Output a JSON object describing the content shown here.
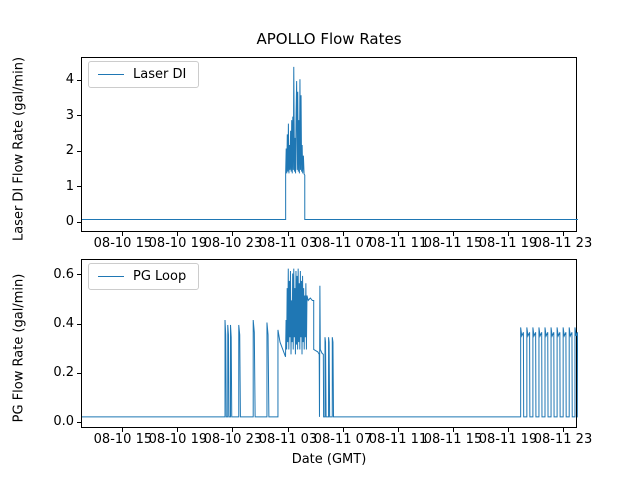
{
  "figure": {
    "title": "APOLLO Flow Rates",
    "xlabel": "Date (GMT)",
    "background": "#ffffff",
    "line_color": "#1f77b4",
    "text_color": "#000000"
  },
  "chart_data": [
    {
      "type": "line",
      "name": "laser-di",
      "ylabel": "Laser DI Flow Rate (gal/min)",
      "legend": {
        "label": "Laser DI",
        "position": "upper left"
      },
      "grid": false,
      "x_unit": "hours after 08-10 12:00 GMT",
      "xlim": [
        -0.05,
        36.02
      ],
      "ylim": [
        -0.28,
        4.65
      ],
      "yticks": [
        0,
        1,
        2,
        3,
        4
      ],
      "ytick_labels": [
        "0",
        "1",
        "2",
        "3",
        "4"
      ],
      "xticks": [
        3,
        7,
        11,
        15,
        19,
        23,
        27,
        31,
        35
      ],
      "xtick_labels": [
        "08-10 15",
        "08-10 19",
        "08-10 23",
        "08-11 03",
        "08-11 07",
        "08-11 11",
        "08-11 15",
        "08-11 19",
        "08-11 23"
      ],
      "series": [
        {
          "name": "Laser DI",
          "color": "#1f77b4",
          "points": [
            [
              -0.05,
              0.1
            ],
            [
              14.76,
              0.1
            ],
            [
              14.76,
              1.4
            ],
            [
              14.8,
              2.1
            ],
            [
              14.84,
              1.4
            ],
            [
              14.88,
              2.5
            ],
            [
              14.92,
              1.45
            ],
            [
              14.96,
              2.8
            ],
            [
              15.0,
              1.4
            ],
            [
              15.04,
              2.2
            ],
            [
              15.08,
              1.5
            ],
            [
              15.12,
              2.6
            ],
            [
              15.16,
              1.45
            ],
            [
              15.2,
              2.9
            ],
            [
              15.24,
              1.4
            ],
            [
              15.28,
              3.0
            ],
            [
              15.32,
              1.5
            ],
            [
              15.35,
              4.4
            ],
            [
              15.4,
              1.45
            ],
            [
              15.44,
              2.4
            ],
            [
              15.48,
              1.4
            ],
            [
              15.52,
              3.1
            ],
            [
              15.56,
              4.0
            ],
            [
              15.6,
              1.5
            ],
            [
              15.64,
              3.7
            ],
            [
              15.68,
              1.45
            ],
            [
              15.72,
              2.9
            ],
            [
              15.76,
              1.4
            ],
            [
              15.8,
              4.05
            ],
            [
              15.84,
              1.5
            ],
            [
              15.88,
              3.6
            ],
            [
              15.92,
              1.45
            ],
            [
              15.96,
              2.2
            ],
            [
              16.0,
              1.4
            ],
            [
              16.05,
              1.9
            ],
            [
              16.1,
              1.38
            ],
            [
              16.15,
              1.35
            ],
            [
              16.15,
              0.1
            ],
            [
              36.02,
              0.1
            ]
          ]
        }
      ]
    },
    {
      "type": "line",
      "name": "pg-loop",
      "ylabel": "PG Flow Rate (gal/min)",
      "legend": {
        "label": "PG Loop",
        "position": "upper left"
      },
      "grid": false,
      "x_unit": "hours after 08-10 12:00 GMT",
      "xlim": [
        -0.05,
        36.02
      ],
      "ylim": [
        -0.0245,
        0.665
      ],
      "yticks": [
        0,
        0.2,
        0.4,
        0.6
      ],
      "ytick_labels": [
        "0.0",
        "0.2",
        "0.4",
        "0.6"
      ],
      "xticks": [
        3,
        7,
        11,
        15,
        19,
        23,
        27,
        31,
        35
      ],
      "xtick_labels": [
        "08-10 15",
        "08-10 19",
        "08-10 23",
        "08-11 03",
        "08-11 07",
        "08-11 11",
        "08-11 15",
        "08-11 19",
        "08-11 23"
      ],
      "series": [
        {
          "name": "PG Loop",
          "color": "#1f77b4",
          "points": [
            [
              -0.05,
              0.025
            ],
            [
              10.35,
              0.025
            ],
            [
              10.35,
              0.42
            ],
            [
              10.4,
              0.36
            ],
            [
              10.44,
              0.025
            ],
            [
              10.55,
              0.025
            ],
            [
              10.55,
              0.4
            ],
            [
              10.6,
              0.36
            ],
            [
              10.64,
              0.025
            ],
            [
              10.75,
              0.025
            ],
            [
              10.75,
              0.4
            ],
            [
              10.8,
              0.35
            ],
            [
              10.84,
              0.025
            ],
            [
              11.35,
              0.025
            ],
            [
              11.35,
              0.4
            ],
            [
              11.42,
              0.36
            ],
            [
              11.47,
              0.025
            ],
            [
              12.4,
              0.025
            ],
            [
              12.4,
              0.42
            ],
            [
              12.48,
              0.37
            ],
            [
              12.54,
              0.025
            ],
            [
              13.4,
              0.025
            ],
            [
              13.4,
              0.41
            ],
            [
              13.48,
              0.36
            ],
            [
              13.54,
              0.025
            ],
            [
              14.2,
              0.025
            ],
            [
              14.2,
              0.38
            ],
            [
              14.35,
              0.33
            ],
            [
              14.55,
              0.3
            ],
            [
              14.75,
              0.27
            ],
            [
              14.79,
              0.42
            ],
            [
              14.83,
              0.3
            ],
            [
              14.87,
              0.55
            ],
            [
              14.91,
              0.33
            ],
            [
              14.95,
              0.63
            ],
            [
              14.99,
              0.3
            ],
            [
              15.03,
              0.58
            ],
            [
              15.07,
              0.35
            ],
            [
              15.11,
              0.62
            ],
            [
              15.15,
              0.28
            ],
            [
              15.19,
              0.5
            ],
            [
              15.23,
              0.33
            ],
            [
              15.27,
              0.61
            ],
            [
              15.31,
              0.3
            ],
            [
              15.35,
              0.63
            ],
            [
              15.39,
              0.35
            ],
            [
              15.43,
              0.55
            ],
            [
              15.47,
              0.28
            ],
            [
              15.51,
              0.62
            ],
            [
              15.55,
              0.32
            ],
            [
              15.59,
              0.6
            ],
            [
              15.63,
              0.3
            ],
            [
              15.67,
              0.63
            ],
            [
              15.71,
              0.33
            ],
            [
              15.75,
              0.57
            ],
            [
              15.79,
              0.3
            ],
            [
              15.83,
              0.62
            ],
            [
              15.87,
              0.35
            ],
            [
              15.91,
              0.58
            ],
            [
              15.95,
              0.28
            ],
            [
              15.99,
              0.6
            ],
            [
              16.03,
              0.33
            ],
            [
              16.07,
              0.55
            ],
            [
              16.11,
              0.3
            ],
            [
              16.15,
              0.52
            ],
            [
              16.19,
              0.35
            ],
            [
              16.23,
              0.57
            ],
            [
              16.27,
              0.3
            ],
            [
              16.31,
              0.52
            ],
            [
              16.4,
              0.5
            ],
            [
              16.55,
              0.51
            ],
            [
              16.7,
              0.5
            ],
            [
              16.8,
              0.5
            ],
            [
              16.8,
              0.3
            ],
            [
              16.95,
              0.295
            ],
            [
              17.1,
              0.29
            ],
            [
              17.2,
              0.28
            ],
            [
              17.22,
              0.025
            ],
            [
              17.25,
              0.56
            ],
            [
              17.28,
              0.3
            ],
            [
              17.4,
              0.285
            ],
            [
              17.5,
              0.28
            ],
            [
              17.52,
              0.025
            ],
            [
              17.62,
              0.025
            ],
            [
              17.62,
              0.35
            ],
            [
              17.66,
              0.33
            ],
            [
              17.7,
              0.025
            ],
            [
              17.88,
              0.025
            ],
            [
              17.88,
              0.35
            ],
            [
              17.92,
              0.33
            ],
            [
              17.96,
              0.025
            ],
            [
              18.15,
              0.025
            ],
            [
              18.15,
              0.35
            ],
            [
              18.2,
              0.33
            ],
            [
              18.24,
              0.025
            ],
            [
              31.7,
              0.025
            ],
            [
              31.85,
              0.025
            ],
            [
              31.85,
              0.39
            ],
            [
              31.93,
              0.355
            ],
            [
              32.05,
              0.37
            ],
            [
              32.07,
              0.025
            ],
            [
              32.3,
              0.025
            ],
            [
              32.3,
              0.39
            ],
            [
              32.38,
              0.355
            ],
            [
              32.5,
              0.37
            ],
            [
              32.52,
              0.025
            ],
            [
              32.74,
              0.025
            ],
            [
              32.74,
              0.39
            ],
            [
              32.82,
              0.355
            ],
            [
              32.94,
              0.37
            ],
            [
              32.96,
              0.025
            ],
            [
              33.18,
              0.025
            ],
            [
              33.18,
              0.39
            ],
            [
              33.26,
              0.355
            ],
            [
              33.38,
              0.37
            ],
            [
              33.4,
              0.025
            ],
            [
              33.62,
              0.025
            ],
            [
              33.62,
              0.39
            ],
            [
              33.7,
              0.355
            ],
            [
              33.82,
              0.37
            ],
            [
              33.84,
              0.025
            ],
            [
              34.06,
              0.025
            ],
            [
              34.06,
              0.39
            ],
            [
              34.14,
              0.355
            ],
            [
              34.26,
              0.37
            ],
            [
              34.28,
              0.025
            ],
            [
              34.5,
              0.025
            ],
            [
              34.5,
              0.39
            ],
            [
              34.58,
              0.355
            ],
            [
              34.7,
              0.37
            ],
            [
              34.72,
              0.025
            ],
            [
              34.94,
              0.025
            ],
            [
              34.94,
              0.39
            ],
            [
              35.02,
              0.355
            ],
            [
              35.14,
              0.37
            ],
            [
              35.16,
              0.025
            ],
            [
              35.38,
              0.025
            ],
            [
              35.38,
              0.39
            ],
            [
              35.46,
              0.355
            ],
            [
              35.58,
              0.37
            ],
            [
              35.6,
              0.025
            ],
            [
              35.8,
              0.025
            ],
            [
              35.8,
              0.39
            ],
            [
              35.88,
              0.355
            ],
            [
              35.98,
              0.37
            ],
            [
              36.0,
              0.025
            ],
            [
              36.02,
              0.025
            ]
          ]
        }
      ]
    }
  ]
}
